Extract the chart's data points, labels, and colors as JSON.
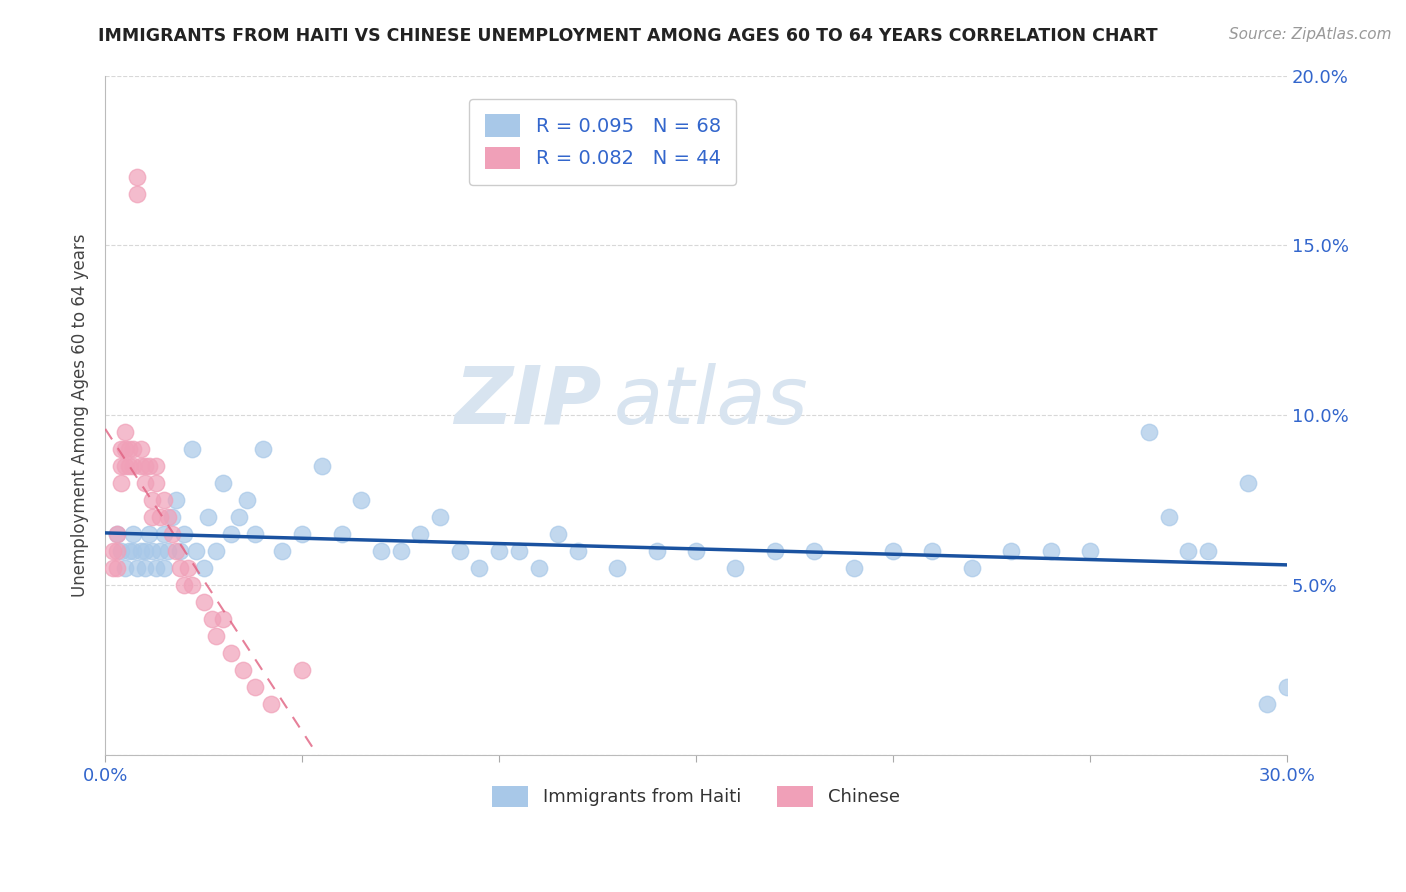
{
  "title": "IMMIGRANTS FROM HAITI VS CHINESE UNEMPLOYMENT AMONG AGES 60 TO 64 YEARS CORRELATION CHART",
  "source_text": "Source: ZipAtlas.com",
  "ylabel": "Unemployment Among Ages 60 to 64 years",
  "legend_haiti": "Immigrants from Haiti",
  "legend_chinese": "Chinese",
  "haiti_R": "R = 0.095",
  "haiti_N": "N = 68",
  "chinese_R": "R = 0.082",
  "chinese_N": "N = 44",
  "haiti_color": "#a8c8e8",
  "chinese_color": "#f0a0b8",
  "haiti_line_color": "#1a52a0",
  "chinese_line_color": "#e06080",
  "grid_color": "#d8d8d8",
  "xlim": [
    0.0,
    0.3
  ],
  "ylim": [
    0.0,
    0.2
  ],
  "haiti_x": [
    0.003,
    0.004,
    0.005,
    0.006,
    0.007,
    0.007,
    0.008,
    0.009,
    0.01,
    0.01,
    0.011,
    0.012,
    0.013,
    0.014,
    0.015,
    0.015,
    0.016,
    0.017,
    0.018,
    0.019,
    0.02,
    0.022,
    0.023,
    0.025,
    0.026,
    0.028,
    0.03,
    0.032,
    0.034,
    0.036,
    0.038,
    0.04,
    0.045,
    0.05,
    0.055,
    0.06,
    0.065,
    0.07,
    0.075,
    0.08,
    0.085,
    0.09,
    0.095,
    0.1,
    0.105,
    0.11,
    0.115,
    0.12,
    0.13,
    0.14,
    0.15,
    0.16,
    0.17,
    0.18,
    0.19,
    0.2,
    0.21,
    0.22,
    0.23,
    0.24,
    0.25,
    0.265,
    0.27,
    0.275,
    0.28,
    0.29,
    0.295,
    0.3
  ],
  "haiti_y": [
    0.065,
    0.06,
    0.055,
    0.06,
    0.065,
    0.06,
    0.055,
    0.06,
    0.06,
    0.055,
    0.065,
    0.06,
    0.055,
    0.06,
    0.065,
    0.055,
    0.06,
    0.07,
    0.075,
    0.06,
    0.065,
    0.09,
    0.06,
    0.055,
    0.07,
    0.06,
    0.08,
    0.065,
    0.07,
    0.075,
    0.065,
    0.09,
    0.06,
    0.065,
    0.085,
    0.065,
    0.075,
    0.06,
    0.06,
    0.065,
    0.07,
    0.06,
    0.055,
    0.06,
    0.06,
    0.055,
    0.065,
    0.06,
    0.055,
    0.06,
    0.06,
    0.055,
    0.06,
    0.06,
    0.055,
    0.06,
    0.06,
    0.055,
    0.06,
    0.06,
    0.06,
    0.095,
    0.07,
    0.06,
    0.06,
    0.08,
    0.015,
    0.02
  ],
  "chinese_x": [
    0.002,
    0.002,
    0.003,
    0.003,
    0.003,
    0.004,
    0.004,
    0.004,
    0.005,
    0.005,
    0.005,
    0.006,
    0.006,
    0.007,
    0.007,
    0.008,
    0.008,
    0.009,
    0.009,
    0.01,
    0.01,
    0.011,
    0.012,
    0.012,
    0.013,
    0.013,
    0.014,
    0.015,
    0.016,
    0.017,
    0.018,
    0.019,
    0.02,
    0.021,
    0.022,
    0.025,
    0.027,
    0.028,
    0.03,
    0.032,
    0.035,
    0.038,
    0.042,
    0.05
  ],
  "chinese_y": [
    0.06,
    0.055,
    0.065,
    0.06,
    0.055,
    0.09,
    0.085,
    0.08,
    0.095,
    0.09,
    0.085,
    0.09,
    0.085,
    0.09,
    0.085,
    0.17,
    0.165,
    0.09,
    0.085,
    0.085,
    0.08,
    0.085,
    0.075,
    0.07,
    0.085,
    0.08,
    0.07,
    0.075,
    0.07,
    0.065,
    0.06,
    0.055,
    0.05,
    0.055,
    0.05,
    0.045,
    0.04,
    0.035,
    0.04,
    0.03,
    0.025,
    0.02,
    0.015,
    0.025
  ]
}
